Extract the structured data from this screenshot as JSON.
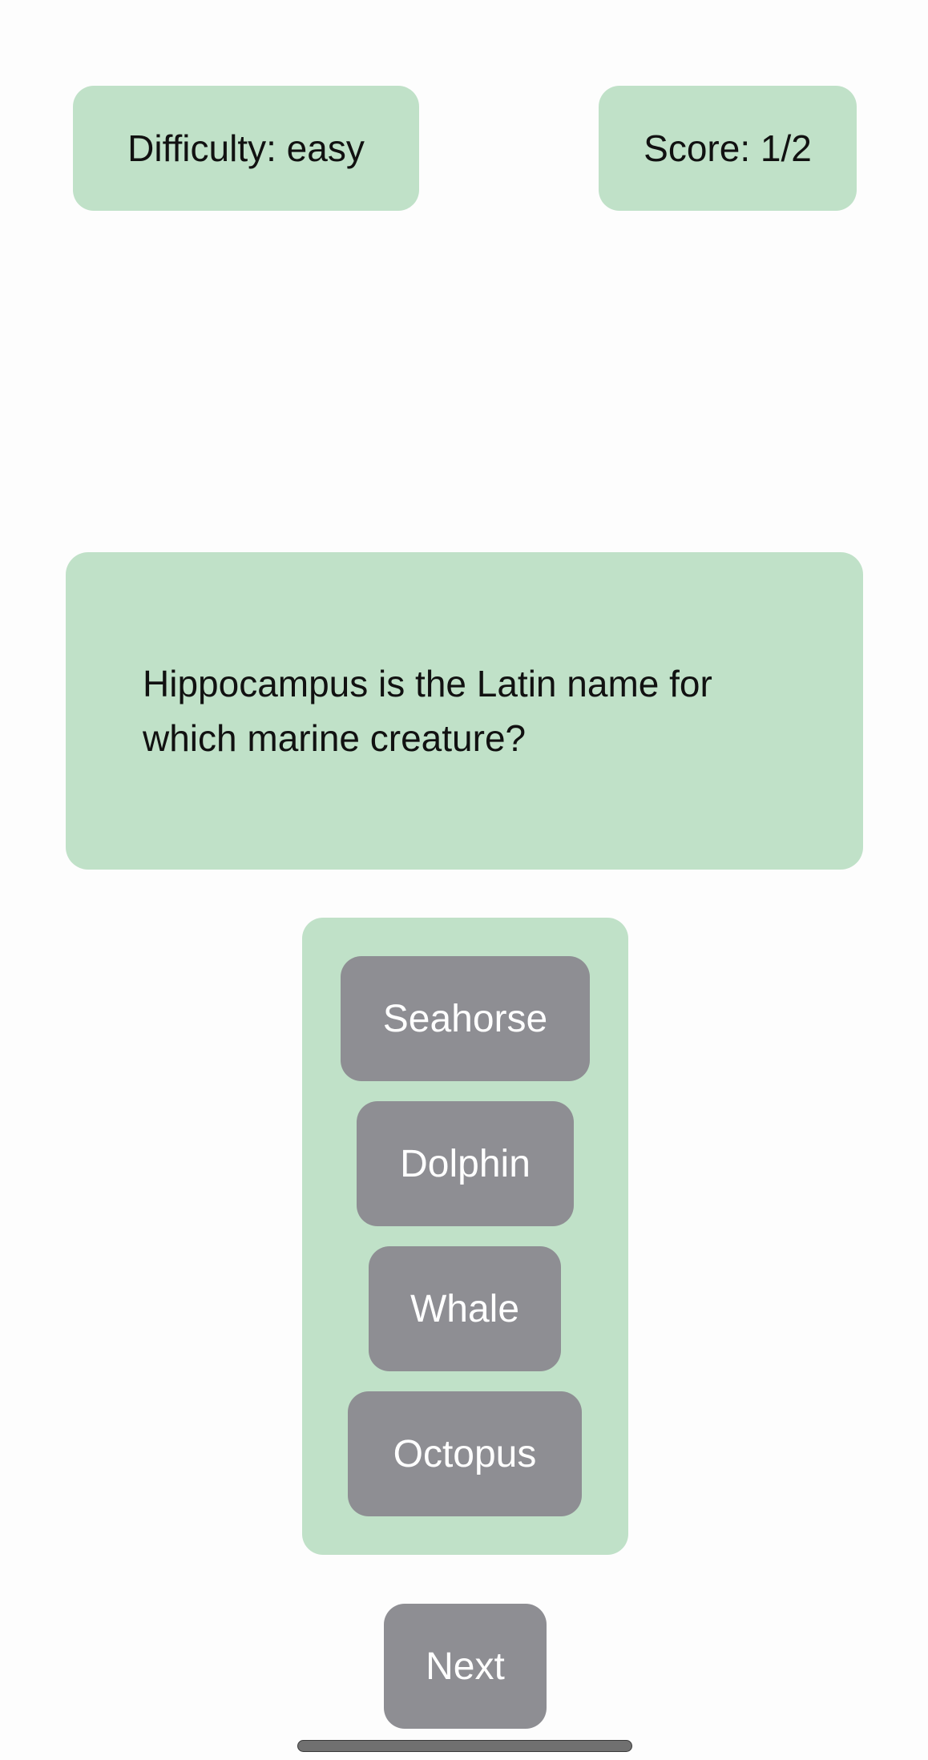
{
  "header": {
    "difficulty_label": "Difficulty: easy",
    "score_label": "Score: 1/2"
  },
  "question": {
    "text": "Hippocampus is the Latin name for which marine creature?"
  },
  "answers": [
    {
      "label": "Seahorse"
    },
    {
      "label": "Dolphin"
    },
    {
      "label": "Whale"
    },
    {
      "label": "Octopus"
    }
  ],
  "footer": {
    "next_label": "Next"
  },
  "colors": {
    "panel": "#c0e1c8",
    "button": "#8e8e93",
    "button_text": "#ffffff",
    "background": "#fdfdfd"
  }
}
